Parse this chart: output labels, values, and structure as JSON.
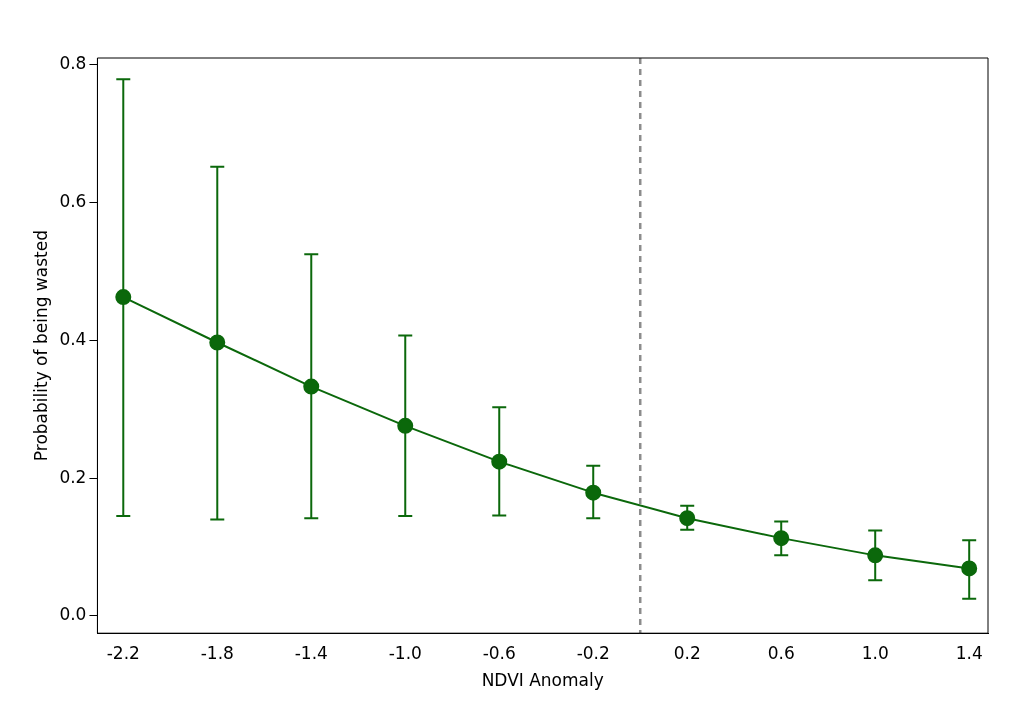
{
  "chart_data": {
    "type": "line",
    "xlabel": "NDVI Anomaly",
    "ylabel": "Probability of being wasted",
    "x": [
      -2.2,
      -1.8,
      -1.4,
      -1.0,
      -0.6,
      -0.2,
      0.2,
      0.6,
      1.0,
      1.4
    ],
    "series": [
      {
        "color": "#0b680b",
        "values": [
          0.463,
          0.397,
          0.333,
          0.276,
          0.224,
          0.179,
          0.142,
          0.113,
          0.088,
          0.069
        ],
        "errors": [
          [
            0.145,
            0.779
          ],
          [
            0.14,
            0.652
          ],
          [
            0.142,
            0.525
          ],
          [
            0.145,
            0.407
          ],
          [
            0.146,
            0.303
          ],
          [
            0.142,
            0.218
          ],
          [
            0.125,
            0.16
          ],
          [
            0.088,
            0.137
          ],
          [
            0.052,
            0.124
          ],
          [
            0.025,
            0.11
          ]
        ]
      }
    ],
    "xlim": [
      -2.31,
      1.48
    ],
    "ylim": [
      -0.025,
      0.81
    ],
    "xticks": [
      {
        "value": -2.2,
        "label": "-2.2"
      },
      {
        "value": -1.8,
        "label": "-1.8"
      },
      {
        "value": -1.4,
        "label": "-1.4"
      },
      {
        "value": -1.0,
        "label": "-1.0"
      },
      {
        "value": -0.6,
        "label": "-0.6"
      },
      {
        "value": -0.2,
        "label": "-0.2"
      },
      {
        "value": 0.2,
        "label": "0.2"
      },
      {
        "value": 0.6,
        "label": "0.6"
      },
      {
        "value": 1.0,
        "label": "1.0"
      },
      {
        "value": 1.4,
        "label": "1.4"
      }
    ],
    "yticks": [
      {
        "value": 0,
        "label": "0.0"
      },
      {
        "value": 0.2,
        "label": "0.2"
      },
      {
        "value": 0.4,
        "label": "0.4"
      },
      {
        "value": 0.6,
        "label": "0.6"
      },
      {
        "value": 0.8,
        "label": "0.8"
      }
    ],
    "ref_lines": [
      {
        "axis": "x",
        "value": 0,
        "color": "#8c8c8c",
        "line_style": "dashed"
      }
    ],
    "marker": "circle",
    "line_style": "solid",
    "grid": false,
    "legend": false
  }
}
